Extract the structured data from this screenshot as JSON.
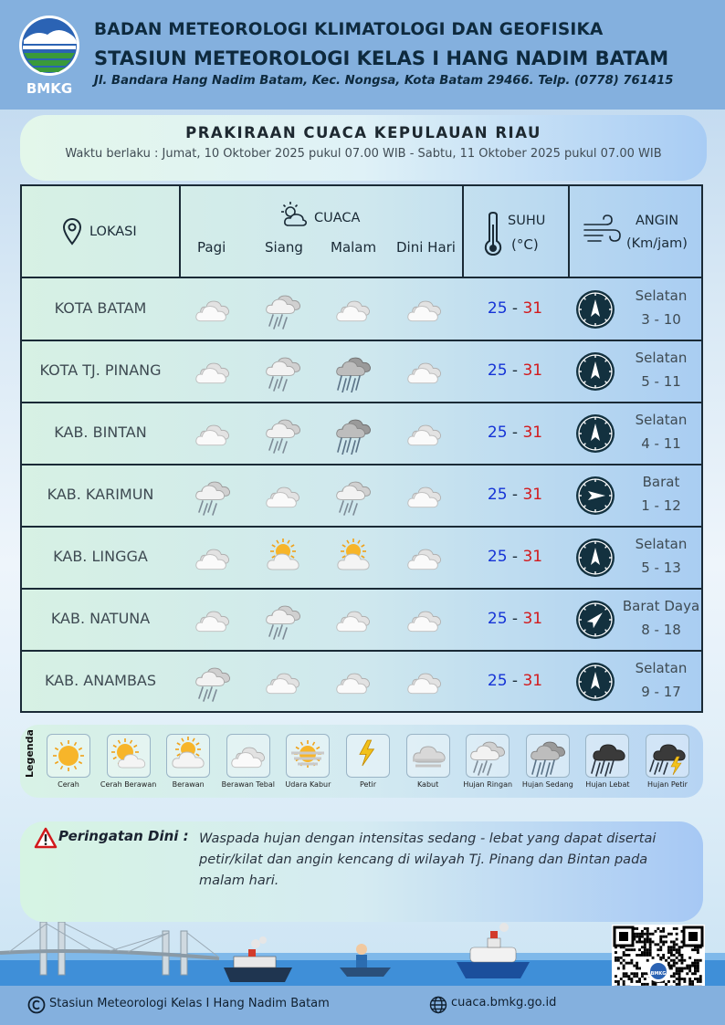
{
  "header": {
    "logo_text": "BMKG",
    "line1": "BADAN METEOROLOGI KLIMATOLOGI DAN GEOFISIKA",
    "line2": "STASIUN METEOROLOGI KELAS I HANG NADIM BATAM",
    "line3": "Jl. Bandara Hang Nadim Batam, Kec. Nongsa, Kota Batam 29466.  Telp. (0778) 761415"
  },
  "title": "PRAKIRAAN CUACA KEPULAUAN RIAU",
  "validity": "Waktu berlaku : Jumat, 10 Oktober 2025 pukul 07.00 WIB - Sabtu, 11 Oktober 2025 pukul 07.00 WIB",
  "table_header": {
    "lokasi": "LOKASI",
    "cuaca": "CUACA",
    "periods": [
      "Pagi",
      "Siang",
      "Malam",
      "Dini Hari"
    ],
    "suhu": "SUHU",
    "suhu_unit": "(°C)",
    "angin": "ANGIN",
    "angin_unit": "(Km/jam)"
  },
  "rows": [
    {
      "location": "KOTA BATAM",
      "weather": [
        "berawan-tebal",
        "hujan-ringan",
        "berawan-tebal",
        "berawan-tebal"
      ],
      "tmin": "25",
      "tmax": "31",
      "wind_dir": "Selatan",
      "wind_speed": "3 - 10",
      "arrow_deg": 0
    },
    {
      "location": "KOTA TJ. PINANG",
      "weather": [
        "berawan-tebal",
        "hujan-ringan",
        "hujan-sedang",
        "berawan-tebal"
      ],
      "tmin": "25",
      "tmax": "31",
      "wind_dir": "Selatan",
      "wind_speed": "5 - 11",
      "arrow_deg": 0
    },
    {
      "location": "KAB. BINTAN",
      "weather": [
        "berawan-tebal",
        "hujan-ringan",
        "hujan-sedang",
        "berawan-tebal"
      ],
      "tmin": "25",
      "tmax": "31",
      "wind_dir": "Selatan",
      "wind_speed": "4 - 11",
      "arrow_deg": 0
    },
    {
      "location": "KAB. KARIMUN",
      "weather": [
        "hujan-ringan",
        "berawan-tebal",
        "hujan-ringan",
        "berawan-tebal"
      ],
      "tmin": "25",
      "tmax": "31",
      "wind_dir": "Barat",
      "wind_speed": "1 - 12",
      "arrow_deg": 90
    },
    {
      "location": "KAB. LINGGA",
      "weather": [
        "berawan-tebal",
        "berawan",
        "berawan",
        "berawan-tebal"
      ],
      "tmin": "25",
      "tmax": "31",
      "wind_dir": "Selatan",
      "wind_speed": "5 - 13",
      "arrow_deg": 0
    },
    {
      "location": "KAB. NATUNA",
      "weather": [
        "berawan-tebal",
        "hujan-ringan",
        "berawan-tebal",
        "berawan-tebal"
      ],
      "tmin": "25",
      "tmax": "31",
      "wind_dir": "Barat Daya",
      "wind_speed": "8 - 18",
      "arrow_deg": 45
    },
    {
      "location": "KAB. ANAMBAS",
      "weather": [
        "hujan-ringan",
        "berawan-tebal",
        "berawan-tebal",
        "berawan-tebal"
      ],
      "tmin": "25",
      "tmax": "31",
      "wind_dir": "Selatan",
      "wind_speed": "9 - 17",
      "arrow_deg": 0
    }
  ],
  "legend": {
    "title": "Legenda",
    "items": [
      {
        "key": "cerah",
        "label": "Cerah"
      },
      {
        "key": "cerah-berawan",
        "label": "Cerah Berawan"
      },
      {
        "key": "berawan",
        "label": "Berawan"
      },
      {
        "key": "berawan-tebal",
        "label": "Berawan Tebal"
      },
      {
        "key": "udara-kabur",
        "label": "Udara Kabur"
      },
      {
        "key": "petir",
        "label": "Petir"
      },
      {
        "key": "kabut",
        "label": "Kabut"
      },
      {
        "key": "hujan-ringan",
        "label": "Hujan Ringan"
      },
      {
        "key": "hujan-sedang",
        "label": "Hujan Sedang"
      },
      {
        "key": "hujan-lebat",
        "label": "Hujan Lebat"
      },
      {
        "key": "hujan-petir",
        "label": "Hujan Petir"
      }
    ]
  },
  "warning": {
    "label": "Peringatan Dini :",
    "text": "Waspada hujan dengan intensitas sedang - lebat yang dapat disertai petir/kilat dan angin kencang di wilayah Tj. Pinang dan Bintan pada malam hari."
  },
  "footer": {
    "copyright": "Stasiun Meteorologi Kelas I Hang Nadim Batam",
    "website": "cuaca.bmkg.go.id"
  },
  "colors": {
    "temp_min": "#1533d6",
    "temp_max": "#d2191c",
    "header_bg": "#84b0de",
    "compass": "#13313f"
  }
}
